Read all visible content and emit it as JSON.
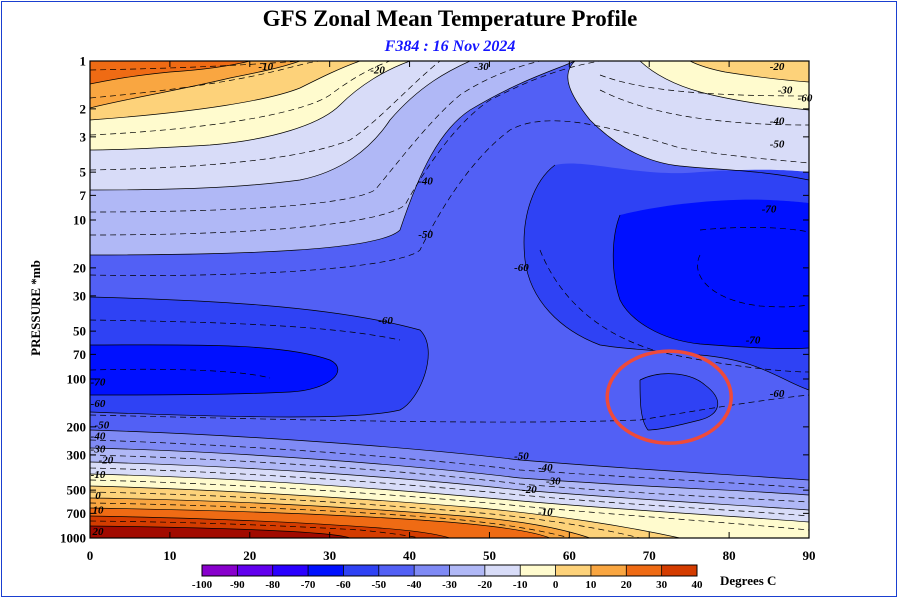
{
  "chart_data": {
    "type": "heatmap",
    "title": "GFS Zonal Mean Temperature Profile",
    "subtitle": "F384 : 16 Nov 2024",
    "ylabel": "PRESSURE *mb",
    "xlabel": "",
    "xlim": [
      0,
      90
    ],
    "x_ticks": [
      "0",
      "10",
      "20",
      "30",
      "40",
      "50",
      "60",
      "70",
      "80",
      "90"
    ],
    "y_ticks": [
      "1",
      "2",
      "3",
      "5",
      "7",
      "10",
      "20",
      "30",
      "50",
      "70",
      "100",
      "200",
      "300",
      "500",
      "700",
      "1000"
    ],
    "y_scale": "log",
    "ylim": [
      1000,
      1
    ],
    "colorbar": {
      "levels": [
        "-100",
        "-90",
        "-80",
        "-70",
        "-60",
        "-50",
        "-40",
        "-30",
        "-20",
        "-10",
        "0",
        "10",
        "20",
        "30",
        "40"
      ],
      "colors": [
        "#8800cc",
        "#6200ee",
        "#2a00ff",
        "#0010ff",
        "#2f42f4",
        "#5260f5",
        "#7f8af5",
        "#b0b8f6",
        "#d8dcf8",
        "#fffbce",
        "#fdd27a",
        "#f9a641",
        "#ef6b14",
        "#d43c00",
        "#a10a00",
        "#6a0000",
        "#8b6b22"
      ],
      "units_label": "Degrees C"
    },
    "contour_labels": [
      {
        "text": "-10",
        "x": 22,
        "p": 1
      },
      {
        "text": "-20",
        "x": 36,
        "p": 1.2
      },
      {
        "text": "-30",
        "x": 49,
        "p": 1
      },
      {
        "text": "-40",
        "x": 42,
        "p": 6
      },
      {
        "text": "-50",
        "x": 42,
        "p": 13
      },
      {
        "text": "-60",
        "x": 37,
        "p": 45
      },
      {
        "text": "-60",
        "x": 54,
        "p": 21
      },
      {
        "text": "-70",
        "x": 85,
        "p": 9
      },
      {
        "text": "-70",
        "x": 83,
        "p": 60
      },
      {
        "text": "-60",
        "x": 86,
        "p": 130
      },
      {
        "text": "-50",
        "x": 54,
        "p": 320
      },
      {
        "text": "-40",
        "x": 57,
        "p": 380
      },
      {
        "text": "-30",
        "x": 58,
        "p": 460
      },
      {
        "text": "-20",
        "x": 55,
        "p": 520
      },
      {
        "text": "-10",
        "x": 57,
        "p": 720
      },
      {
        "text": "-20",
        "x": 86,
        "p": 1.1
      },
      {
        "text": "-30",
        "x": 87,
        "p": 1.6
      },
      {
        "text": "-40",
        "x": 86,
        "p": 2.5
      },
      {
        "text": "-50",
        "x": 86,
        "p": 3.5
      },
      {
        "text": "-60",
        "x": 89.5,
        "p": 1.8
      },
      {
        "text": "-70",
        "x": 1,
        "p": 110
      },
      {
        "text": "-60",
        "x": 0,
        "p": 150
      },
      {
        "text": "-50",
        "x": 1.5,
        "p": 205
      },
      {
        "text": "-40",
        "x": 0.5,
        "p": 240
      },
      {
        "text": "-30",
        "x": 0.5,
        "p": 290
      },
      {
        "text": "-20",
        "x": 2,
        "p": 340
      },
      {
        "text": "-10",
        "x": 0,
        "p": 420
      },
      {
        "text": "0",
        "x": 0,
        "p": 570
      },
      {
        "text": "10",
        "x": 0,
        "p": 700
      },
      {
        "text": "20",
        "x": 0,
        "p": 1000
      }
    ],
    "annotation": {
      "shape": "ellipse",
      "color": "#ef4a3a",
      "x_center": 72.5,
      "p_center": 130
    }
  }
}
